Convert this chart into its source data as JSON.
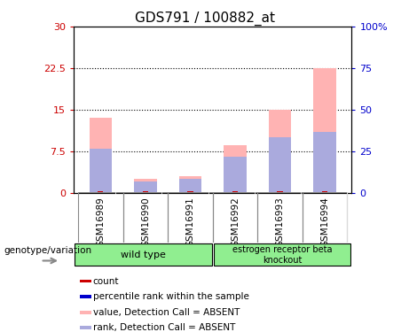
{
  "title": "GDS791 / 100882_at",
  "samples": [
    "GSM16989",
    "GSM16990",
    "GSM16991",
    "GSM16992",
    "GSM16993",
    "GSM16994"
  ],
  "pink_heights": [
    13.5,
    2.5,
    3.0,
    8.5,
    15.0,
    22.5
  ],
  "blue_heights": [
    8.0,
    2.0,
    2.5,
    6.5,
    10.0,
    11.0
  ],
  "red_heights": [
    0.3,
    0.3,
    0.3,
    0.3,
    0.3,
    0.3
  ],
  "pink_color": "#FFB3B3",
  "blue_color": "#AAAADD",
  "dark_red_color": "#CC0000",
  "dark_blue_color": "#0000CC",
  "ylim_left": [
    0,
    30
  ],
  "ylim_right": [
    0,
    100
  ],
  "yticks_left": [
    0,
    7.5,
    15,
    22.5,
    30
  ],
  "yticks_right": [
    0,
    25,
    50,
    75,
    100
  ],
  "ytick_labels_left": [
    "0",
    "7.5",
    "15",
    "22.5",
    "30"
  ],
  "ytick_labels_right": [
    "0",
    "25",
    "50",
    "75",
    "100%"
  ],
  "genotype_label": "genotype/variation",
  "legend_items": [
    {
      "color": "#CC0000",
      "label": "count"
    },
    {
      "color": "#0000CC",
      "label": "percentile rank within the sample"
    },
    {
      "color": "#FFB3B3",
      "label": "value, Detection Call = ABSENT"
    },
    {
      "color": "#AAAADD",
      "label": "rank, Detection Call = ABSENT"
    }
  ],
  "bar_width": 0.5,
  "bg_color": "#D3D3D3",
  "green_color": "#90EE90",
  "plot_bg": "white"
}
